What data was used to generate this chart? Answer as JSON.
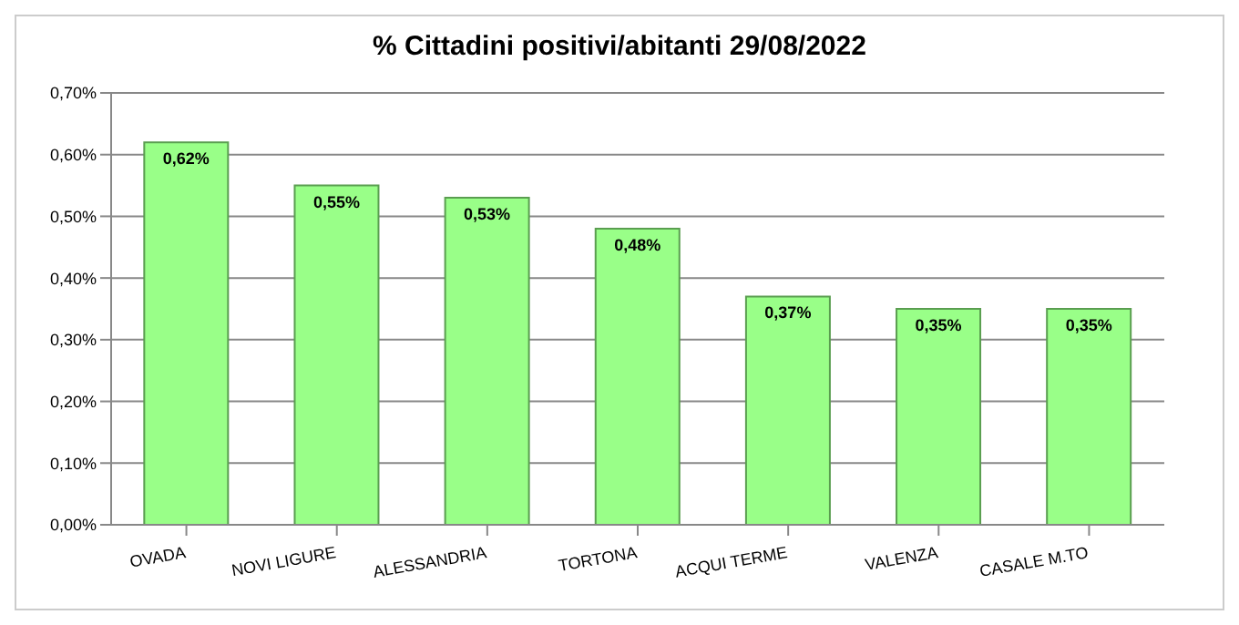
{
  "chart_data": {
    "type": "bar",
    "title": "% Cittadini positivi/abitanti 29/08/2022",
    "categories": [
      "OVADA",
      "NOVI LIGURE",
      "ALESSANDRIA",
      "TORTONA",
      "ACQUI TERME",
      "VALENZA",
      "CASALE M.TO"
    ],
    "values": [
      0.62,
      0.55,
      0.53,
      0.48,
      0.37,
      0.35,
      0.35
    ],
    "value_labels": [
      "0,62%",
      "0,55%",
      "0,53%",
      "0,48%",
      "0,37%",
      "0,35%",
      "0,35%"
    ],
    "color": "#99ff88",
    "ylim": [
      0,
      0.7
    ],
    "yticks": [
      {
        "value": 0,
        "label": "0,00%"
      },
      {
        "value": 0.1,
        "label": "0,10%"
      },
      {
        "value": 0.2,
        "label": "0,20%"
      },
      {
        "value": 0.3,
        "label": "0,30%"
      },
      {
        "value": 0.4,
        "label": "0,40%"
      },
      {
        "value": 0.5,
        "label": "0,50%"
      },
      {
        "value": 0.6,
        "label": "0,60%"
      },
      {
        "value": 0.7,
        "label": "0,70%"
      }
    ],
    "grid": "y"
  }
}
